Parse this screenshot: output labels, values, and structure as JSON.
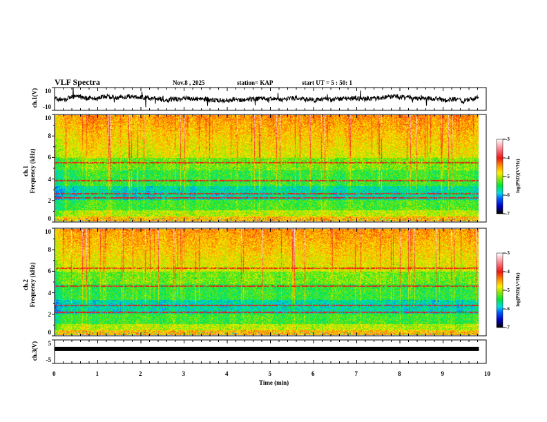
{
  "header": {
    "title": "VLF Spectra",
    "date": "Nov.8 , 2025",
    "station": "station= KAP",
    "start": "start UT =  5 : 50: 1"
  },
  "colors": {
    "trace": "#000000"
  },
  "chart_data": [
    {
      "type": "line",
      "name": "ch1 waveform",
      "ylabel": "ch.1(V)",
      "ylim": [
        -10,
        10
      ],
      "yticks": [
        "10",
        "-10"
      ],
      "xlim": [
        0,
        10
      ],
      "data_end_min": 9.83
    },
    {
      "type": "heatmap",
      "name": "ch1 spectrogram",
      "ylabel": "ch.1\nFrequency (kHz)",
      "ylabel_lines": [
        "ch.1",
        "Frequency (kHz)"
      ],
      "ylim": [
        0,
        10
      ],
      "yticks": [
        "0",
        "2",
        "4",
        "6",
        "8",
        "10"
      ],
      "xlim": [
        0,
        10
      ],
      "colorbar": {
        "label": "log(PSD)(V²/Hz)",
        "range": [
          -7,
          -3
        ],
        "ticks": [
          "-3",
          "-4",
          "-5",
          "-6",
          "-7"
        ]
      }
    },
    {
      "type": "heatmap",
      "name": "ch2 spectrogram",
      "ylabel_lines": [
        "ch.2",
        "Frequency (kHz)"
      ],
      "ylim": [
        0,
        10
      ],
      "yticks": [
        "0",
        "2",
        "4",
        "6",
        "8",
        "10"
      ],
      "xlim": [
        0,
        10
      ],
      "colorbar": {
        "label": "log(PSD)(V²/Hz)",
        "range": [
          -7,
          -3
        ],
        "ticks": [
          "-3",
          "-4",
          "-5",
          "-6",
          "-7"
        ]
      }
    },
    {
      "type": "line",
      "name": "ch3 waveform",
      "ylabel": "ch.3(V)",
      "ylim": [
        -5,
        5
      ],
      "yticks": [
        "5",
        "-5"
      ],
      "level_v": 1.2,
      "xlim": [
        0,
        10
      ]
    }
  ],
  "xaxis": {
    "label": "Time (min)",
    "ticks": [
      "0",
      "1",
      "2",
      "3",
      "4",
      "5",
      "6",
      "7",
      "8",
      "9",
      "10"
    ]
  }
}
